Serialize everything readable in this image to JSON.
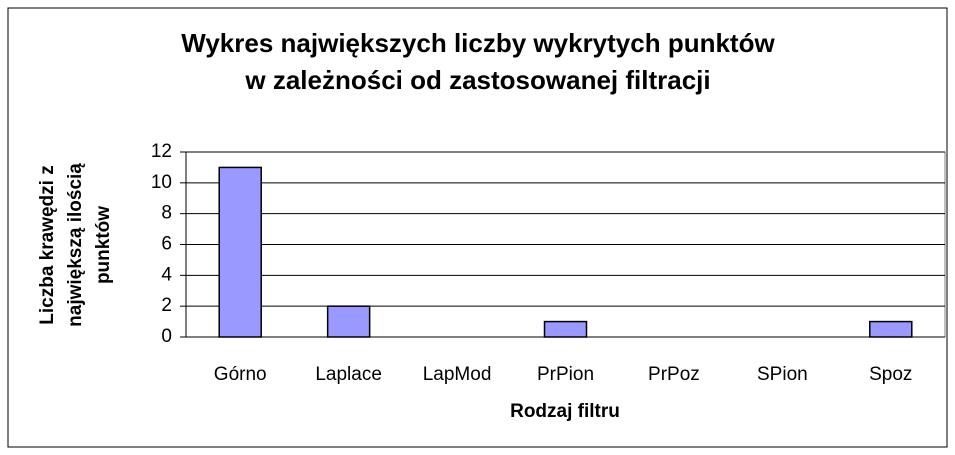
{
  "chart_data": {
    "type": "bar",
    "title": [
      "Wykres największych liczby wykrytych punktów",
      "w zależności od zastosowanej filtracji"
    ],
    "y_label": [
      "Liczba krawędzi z",
      "największą ilością",
      "punktów"
    ],
    "x_label": "Rodzaj filtru",
    "categories": [
      "Górno",
      "Laplace",
      "LapMod",
      "PrPion",
      "PrPoz",
      "SPion",
      "Spoz"
    ],
    "values": [
      11,
      2,
      0,
      1,
      0,
      0,
      1
    ],
    "color": "#9999ff",
    "ylim": [
      0,
      12
    ],
    "yticks": [
      0,
      2,
      4,
      6,
      8,
      10,
      12
    ],
    "grid": true
  }
}
